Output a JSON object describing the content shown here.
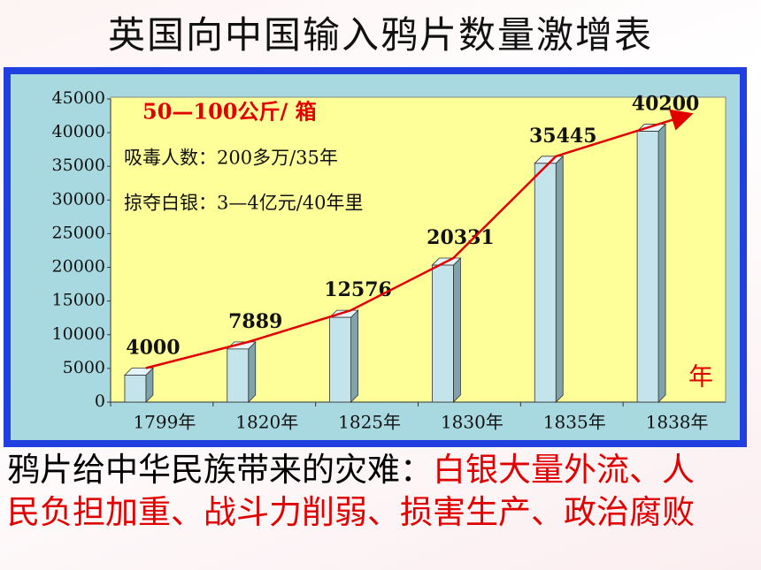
{
  "title": "英国向中国输入鸦片数量激增表",
  "chart_data": {
    "type": "bar",
    "categories": [
      "1799年",
      "1820年",
      "1825年",
      "1830年",
      "1835年",
      "1838年"
    ],
    "values": [
      4000,
      7889,
      12576,
      20331,
      35445,
      40200
    ],
    "color": "#c4e4ec",
    "ylim": [
      0,
      45000
    ],
    "yticks": [
      0,
      5000,
      10000,
      15000,
      20000,
      25000,
      30000,
      35000,
      40000,
      45000
    ],
    "annotations": [
      "50—100公斤/ 箱",
      "吸毒人数：200多万/35年",
      "掠夺白银：3—4亿元/40年里"
    ],
    "x_unit": "年",
    "trend_color": "#e00000"
  },
  "footer": {
    "lead": "鸦片给中华民族带来的灾难：",
    "points": "白银大量外流、人民负担加重、战斗力削弱、损害生产、政治腐败"
  }
}
